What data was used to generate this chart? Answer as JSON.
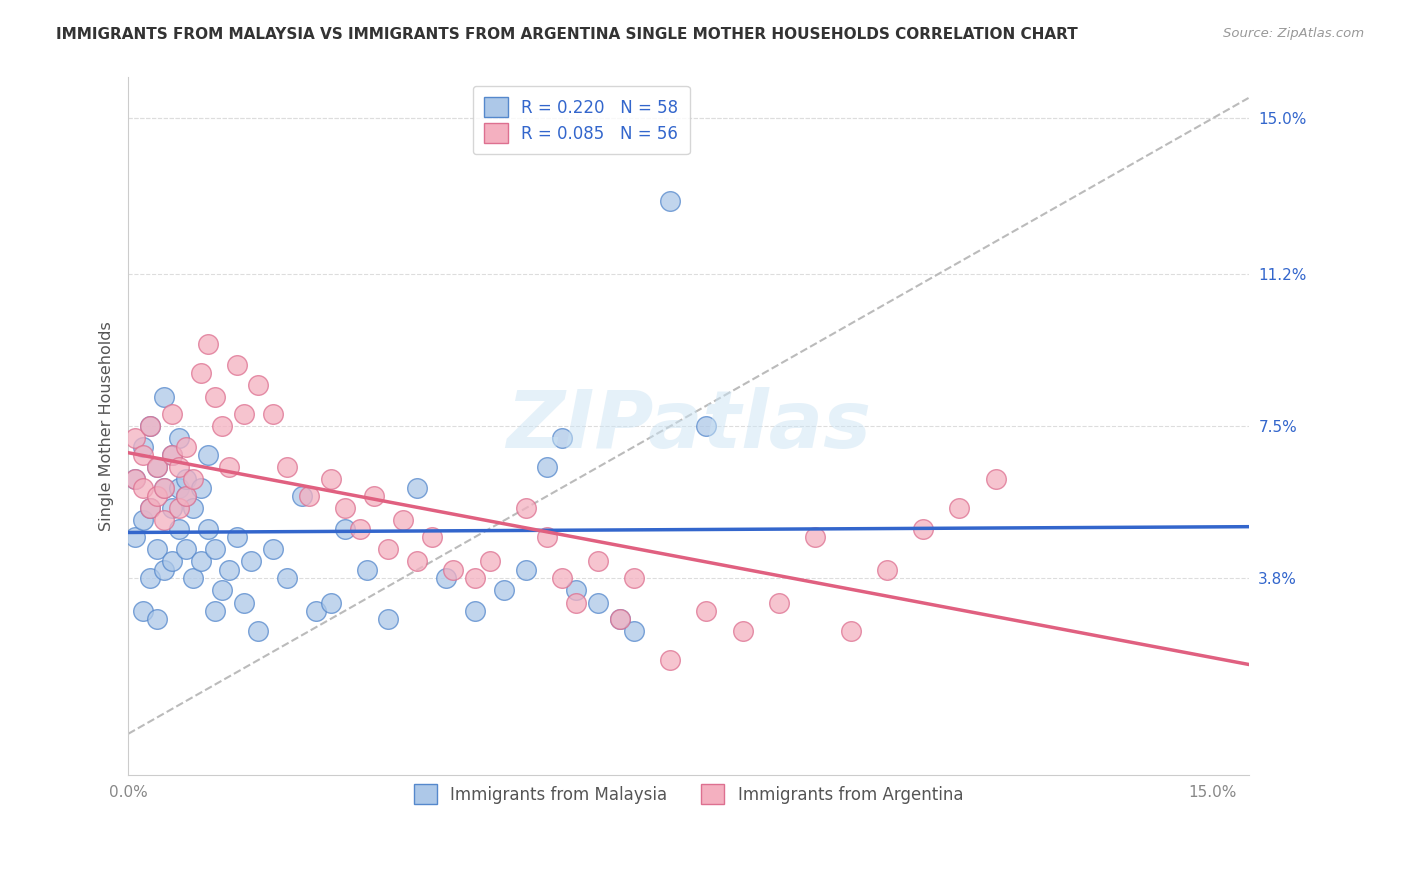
{
  "title": "IMMIGRANTS FROM MALAYSIA VS IMMIGRANTS FROM ARGENTINA SINGLE MOTHER HOUSEHOLDS CORRELATION CHART",
  "source": "Source: ZipAtlas.com",
  "ylabel": "Single Mother Households",
  "xlim": [
    0.0,
    0.155
  ],
  "ylim": [
    -0.01,
    0.16
  ],
  "ytick_labels_right": [
    "15.0%",
    "11.2%",
    "7.5%",
    "3.8%"
  ],
  "ytick_vals_right": [
    0.15,
    0.112,
    0.075,
    0.038
  ],
  "malaysia_color": "#adc8e8",
  "malaysia_edge": "#5588cc",
  "argentina_color": "#f4b0c0",
  "argentina_edge": "#dd7090",
  "malaysia_line_color": "#3366cc",
  "argentina_line_color": "#e06080",
  "dashed_line_color": "#bbbbbb",
  "R_malaysia": 0.22,
  "N_malaysia": 58,
  "R_argentina": 0.085,
  "N_argentina": 56,
  "legend_blue": "#3366cc",
  "watermark": "ZIPatlas",
  "malaysia_x": [
    0.001,
    0.001,
    0.002,
    0.002,
    0.002,
    0.003,
    0.003,
    0.003,
    0.004,
    0.004,
    0.004,
    0.005,
    0.005,
    0.005,
    0.006,
    0.006,
    0.006,
    0.007,
    0.007,
    0.007,
    0.008,
    0.008,
    0.008,
    0.009,
    0.009,
    0.01,
    0.01,
    0.011,
    0.011,
    0.012,
    0.012,
    0.013,
    0.014,
    0.015,
    0.016,
    0.017,
    0.018,
    0.02,
    0.022,
    0.024,
    0.026,
    0.028,
    0.03,
    0.033,
    0.036,
    0.04,
    0.044,
    0.048,
    0.052,
    0.055,
    0.058,
    0.06,
    0.062,
    0.065,
    0.068,
    0.07,
    0.075,
    0.08
  ],
  "malaysia_y": [
    0.062,
    0.048,
    0.07,
    0.052,
    0.03,
    0.075,
    0.055,
    0.038,
    0.065,
    0.045,
    0.028,
    0.06,
    0.04,
    0.082,
    0.055,
    0.068,
    0.042,
    0.06,
    0.05,
    0.072,
    0.058,
    0.045,
    0.062,
    0.055,
    0.038,
    0.06,
    0.042,
    0.068,
    0.05,
    0.045,
    0.03,
    0.035,
    0.04,
    0.048,
    0.032,
    0.042,
    0.025,
    0.045,
    0.038,
    0.058,
    0.03,
    0.032,
    0.05,
    0.04,
    0.028,
    0.06,
    0.038,
    0.03,
    0.035,
    0.04,
    0.065,
    0.072,
    0.035,
    0.032,
    0.028,
    0.025,
    0.13,
    0.075
  ],
  "argentina_x": [
    0.001,
    0.001,
    0.002,
    0.002,
    0.003,
    0.003,
    0.004,
    0.004,
    0.005,
    0.005,
    0.006,
    0.006,
    0.007,
    0.007,
    0.008,
    0.008,
    0.009,
    0.01,
    0.011,
    0.012,
    0.013,
    0.014,
    0.015,
    0.016,
    0.018,
    0.02,
    0.022,
    0.025,
    0.028,
    0.03,
    0.032,
    0.034,
    0.036,
    0.038,
    0.04,
    0.042,
    0.045,
    0.048,
    0.05,
    0.055,
    0.058,
    0.06,
    0.062,
    0.065,
    0.068,
    0.07,
    0.075,
    0.08,
    0.085,
    0.09,
    0.095,
    0.1,
    0.105,
    0.11,
    0.115,
    0.12
  ],
  "argentina_y": [
    0.062,
    0.072,
    0.06,
    0.068,
    0.055,
    0.075,
    0.058,
    0.065,
    0.06,
    0.052,
    0.068,
    0.078,
    0.055,
    0.065,
    0.058,
    0.07,
    0.062,
    0.088,
    0.095,
    0.082,
    0.075,
    0.065,
    0.09,
    0.078,
    0.085,
    0.078,
    0.065,
    0.058,
    0.062,
    0.055,
    0.05,
    0.058,
    0.045,
    0.052,
    0.042,
    0.048,
    0.04,
    0.038,
    0.042,
    0.055,
    0.048,
    0.038,
    0.032,
    0.042,
    0.028,
    0.038,
    0.018,
    0.03,
    0.025,
    0.032,
    0.048,
    0.025,
    0.04,
    0.05,
    0.055,
    0.062
  ]
}
